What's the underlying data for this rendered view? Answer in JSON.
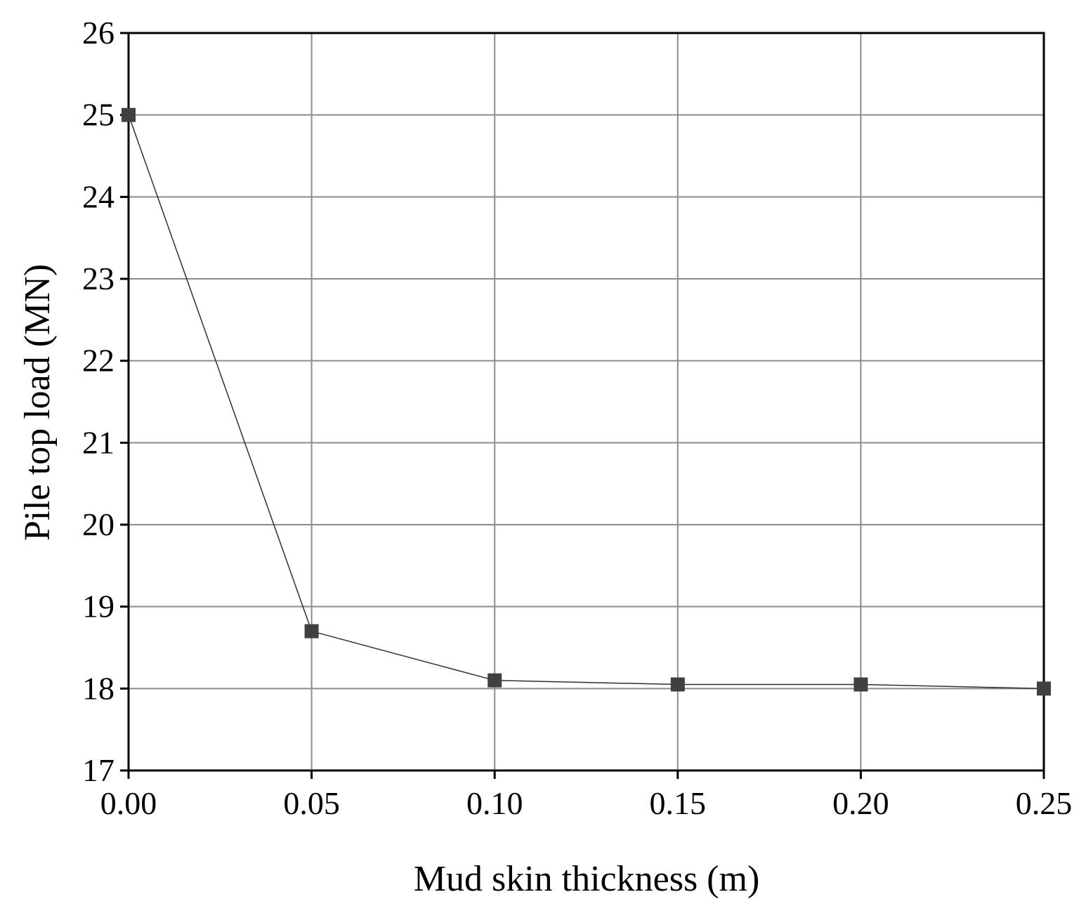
{
  "chart_data": {
    "type": "line",
    "title": "",
    "xlabel": "Mud skin thickness (m)",
    "ylabel": "Pile top load (MN)",
    "xlim": [
      0.0,
      0.25
    ],
    "ylim": [
      17,
      26
    ],
    "xticks": [
      "0.00",
      "0.05",
      "0.10",
      "0.15",
      "0.20",
      "0.25"
    ],
    "yticks": [
      "17",
      "18",
      "19",
      "20",
      "21",
      "22",
      "23",
      "24",
      "25",
      "26"
    ],
    "grid": true,
    "legend": "none",
    "series": [
      {
        "marker": "square",
        "color": "#404040",
        "x": [
          0.0,
          0.05,
          0.1,
          0.15,
          0.2,
          0.25
        ],
        "y": [
          25.0,
          18.7,
          18.1,
          18.05,
          18.05,
          18.0
        ]
      }
    ]
  }
}
